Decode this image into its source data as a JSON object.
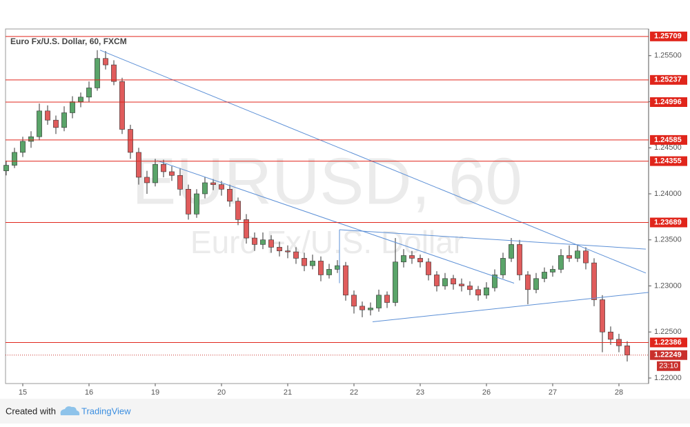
{
  "chart_data": {
    "type": "candlestick",
    "title": "Euro Fx/U.S. Dollar, 60, FXCM",
    "watermark": "EURUSD, 60",
    "watermark_subtitle": "Euro Fx/U.S. Dollar",
    "up_color": "#5aa469",
    "down_color": "#e05c5c",
    "x": [
      -6,
      -3,
      0,
      3,
      6,
      9,
      12,
      15,
      18,
      21,
      24,
      27,
      30,
      33,
      36,
      39,
      42,
      45,
      48,
      51,
      54,
      57,
      60,
      63,
      66,
      69,
      72,
      75,
      78,
      81,
      84,
      87,
      90,
      93,
      96,
      99,
      102,
      105,
      108,
      111,
      114,
      117,
      120,
      123,
      126,
      129,
      132,
      135,
      138,
      141,
      144,
      147,
      150,
      153,
      156,
      159,
      162,
      165,
      168,
      171,
      174,
      177,
      180,
      183,
      186,
      189,
      192,
      195,
      198,
      201,
      204,
      207,
      210,
      213,
      216,
      219
    ],
    "ohlc": [
      [
        1.2425,
        1.2436,
        1.242,
        1.2431
      ],
      [
        1.2431,
        1.245,
        1.2428,
        1.2445
      ],
      [
        1.2445,
        1.2462,
        1.244,
        1.2457
      ],
      [
        1.2457,
        1.2468,
        1.245,
        1.2462
      ],
      [
        1.2462,
        1.2498,
        1.2458,
        1.249
      ],
      [
        1.249,
        1.2496,
        1.2475,
        1.248
      ],
      [
        1.248,
        1.2485,
        1.2465,
        1.2472
      ],
      [
        1.2472,
        1.2495,
        1.2468,
        1.2488
      ],
      [
        1.2488,
        1.2506,
        1.2482,
        1.25
      ],
      [
        1.25,
        1.251,
        1.2494,
        1.2505
      ],
      [
        1.2505,
        1.2522,
        1.25,
        1.2515
      ],
      [
        1.2515,
        1.2556,
        1.2512,
        1.2547
      ],
      [
        1.2547,
        1.2555,
        1.2535,
        1.254
      ],
      [
        1.254,
        1.2545,
        1.2518,
        1.2522
      ],
      [
        1.2522,
        1.2526,
        1.2465,
        1.247
      ],
      [
        1.247,
        1.2475,
        1.2438,
        1.2445
      ],
      [
        1.2445,
        1.245,
        1.241,
        1.2418
      ],
      [
        1.2418,
        1.2425,
        1.24,
        1.2412
      ],
      [
        1.2412,
        1.2438,
        1.2408,
        1.2432
      ],
      [
        1.2432,
        1.2437,
        1.2418,
        1.2424
      ],
      [
        1.2424,
        1.243,
        1.2414,
        1.242
      ],
      [
        1.242,
        1.2428,
        1.2398,
        1.2405
      ],
      [
        1.2405,
        1.241,
        1.2372,
        1.2378
      ],
      [
        1.2378,
        1.2405,
        1.2374,
        1.24
      ],
      [
        1.24,
        1.2418,
        1.2395,
        1.2412
      ],
      [
        1.2412,
        1.2416,
        1.2404,
        1.241
      ],
      [
        1.241,
        1.2414,
        1.2398,
        1.2405
      ],
      [
        1.2405,
        1.241,
        1.2386,
        1.2392
      ],
      [
        1.2392,
        1.2396,
        1.2366,
        1.2372
      ],
      [
        1.2372,
        1.2378,
        1.2346,
        1.2352
      ],
      [
        1.2352,
        1.2358,
        1.2338,
        1.2345
      ],
      [
        1.2345,
        1.2358,
        1.234,
        1.235
      ],
      [
        1.235,
        1.2355,
        1.2336,
        1.2342
      ],
      [
        1.2342,
        1.2348,
        1.2332,
        1.2338
      ],
      [
        1.2338,
        1.2344,
        1.233,
        1.2337
      ],
      [
        1.2337,
        1.2342,
        1.2324,
        1.233
      ],
      [
        1.233,
        1.2336,
        1.2316,
        1.2322
      ],
      [
        1.2322,
        1.2334,
        1.2318,
        1.2327
      ],
      [
        1.2327,
        1.2332,
        1.2305,
        1.2312
      ],
      [
        1.2312,
        1.2324,
        1.2308,
        1.2318
      ],
      [
        1.2318,
        1.2328,
        1.2314,
        1.2322
      ],
      [
        1.2322,
        1.2326,
        1.2284,
        1.229
      ],
      [
        1.229,
        1.2295,
        1.227,
        1.2278
      ],
      [
        1.2278,
        1.2283,
        1.2266,
        1.2274
      ],
      [
        1.2274,
        1.2282,
        1.2268,
        1.2276
      ],
      [
        1.2276,
        1.2296,
        1.2272,
        1.229
      ],
      [
        1.229,
        1.2294,
        1.2276,
        1.2282
      ],
      [
        1.2282,
        1.2352,
        1.2278,
        1.2326
      ],
      [
        1.2326,
        1.234,
        1.232,
        1.2333
      ],
      [
        1.2333,
        1.2338,
        1.2324,
        1.233
      ],
      [
        1.233,
        1.2334,
        1.232,
        1.2326
      ],
      [
        1.2326,
        1.233,
        1.2306,
        1.2312
      ],
      [
        1.2312,
        1.2316,
        1.2294,
        1.23
      ],
      [
        1.23,
        1.2314,
        1.2296,
        1.2308
      ],
      [
        1.2308,
        1.2312,
        1.2296,
        1.2302
      ],
      [
        1.2302,
        1.2308,
        1.2294,
        1.23
      ],
      [
        1.23,
        1.2305,
        1.229,
        1.2296
      ],
      [
        1.2296,
        1.23,
        1.2284,
        1.229
      ],
      [
        1.229,
        1.2304,
        1.2286,
        1.2298
      ],
      [
        1.2298,
        1.2318,
        1.2294,
        1.2312
      ],
      [
        1.2312,
        1.2336,
        1.2308,
        1.233
      ],
      [
        1.233,
        1.2352,
        1.2326,
        1.2345
      ],
      [
        1.2345,
        1.235,
        1.2306,
        1.2312
      ],
      [
        1.2312,
        1.2316,
        1.228,
        1.2296
      ],
      [
        1.2296,
        1.2314,
        1.2292,
        1.2308
      ],
      [
        1.2308,
        1.232,
        1.2304,
        1.2315
      ],
      [
        1.2315,
        1.2322,
        1.231,
        1.2318
      ],
      [
        1.2318,
        1.234,
        1.2314,
        1.2333
      ],
      [
        1.2333,
        1.2344,
        1.2326,
        1.233
      ],
      [
        1.233,
        1.2345,
        1.2326,
        1.2338
      ],
      [
        1.2338,
        1.2342,
        1.2318,
        1.2325
      ],
      [
        1.2325,
        1.233,
        1.2278,
        1.2285
      ],
      [
        1.2285,
        1.229,
        1.2228,
        1.225
      ],
      [
        1.225,
        1.2256,
        1.2236,
        1.2242
      ],
      [
        1.2242,
        1.2248,
        1.2228,
        1.2235
      ],
      [
        1.2235,
        1.224,
        1.2218,
        1.2225
      ]
    ],
    "xlim": [
      -6.25,
      226.75
    ],
    "xticks": [
      {
        "value": 0,
        "label": "15"
      },
      {
        "value": 24,
        "label": "16"
      },
      {
        "value": 48,
        "label": "19"
      },
      {
        "value": 72,
        "label": "20"
      },
      {
        "value": 96,
        "label": "21"
      },
      {
        "value": 120,
        "label": "22"
      },
      {
        "value": 144,
        "label": "23"
      },
      {
        "value": 168,
        "label": "26"
      },
      {
        "value": 192,
        "label": "27"
      },
      {
        "value": 216,
        "label": "28"
      }
    ],
    "ylim": [
      1.2194,
      1.2579
    ],
    "yticks": [
      {
        "value": 1.22,
        "label": "1.22000"
      },
      {
        "value": 1.225,
        "label": "1.22500"
      },
      {
        "value": 1.23,
        "label": "1.23000"
      },
      {
        "value": 1.235,
        "label": "1.23500"
      },
      {
        "value": 1.24,
        "label": "1.24000"
      },
      {
        "value": 1.245,
        "label": "1.24500"
      },
      {
        "value": 1.25,
        "label": "1.25000"
      },
      {
        "value": 1.255,
        "label": "1.25500"
      }
    ],
    "levels": [
      1.25709,
      1.25237,
      1.24996,
      1.24585,
      1.24355,
      1.23689,
      1.22386
    ],
    "level_color": "#e0251b",
    "last_price": 1.22249,
    "last_price_color": "#c9302c",
    "countdown": "23:10",
    "trendline_color": "#5b8fd6",
    "trendlines": [
      [
        28,
        1.2556,
        225.75,
        1.2314
      ],
      [
        48.75,
        1.2436,
        178,
        1.2303
      ],
      [
        114.75,
        1.2361,
        225.75,
        1.234
      ],
      [
        126.75,
        1.2261,
        226.75,
        1.2293
      ],
      [
        114.75,
        1.2361,
        114.75,
        1.2303
      ]
    ]
  },
  "footer": {
    "created_with": "Created with",
    "brand": "TradingView"
  }
}
